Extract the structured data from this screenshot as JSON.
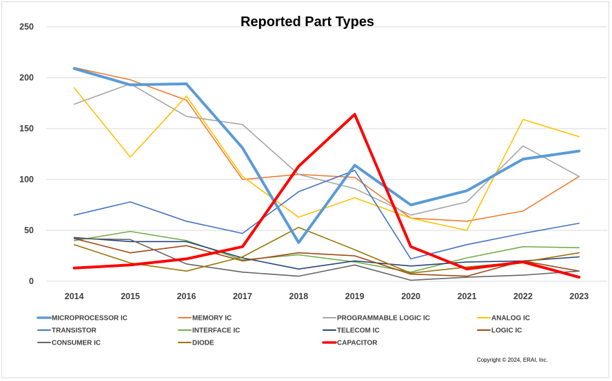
{
  "chart_data": {
    "type": "line",
    "title": "Reported Part Types",
    "xlabel": "",
    "ylabel": "",
    "ylim": [
      0,
      250
    ],
    "yticks": [
      0,
      50,
      100,
      150,
      200,
      250
    ],
    "grid": "horizontal",
    "legend_position": "bottom",
    "categories": [
      "2014",
      "2015",
      "2016",
      "2017",
      "2018",
      "2019",
      "2020",
      "2021",
      "2022",
      "2023"
    ],
    "series": [
      {
        "name": "MICROPROCESSOR IC",
        "color": "#5b9bd5",
        "width": 4,
        "values": [
          209,
          193,
          194,
          131,
          38,
          114,
          75,
          89,
          120,
          128
        ]
      },
      {
        "name": "MEMORY IC",
        "color": "#ed7d31",
        "width": 1.6,
        "values": [
          210,
          198,
          178,
          100,
          105,
          102,
          62,
          59,
          69,
          103
        ]
      },
      {
        "name": "PROGRAMMABLE LOGIC IC",
        "color": "#a5a5a5",
        "width": 1.6,
        "values": [
          174,
          194,
          162,
          154,
          105,
          91,
          65,
          78,
          133,
          103
        ]
      },
      {
        "name": "ANALOG IC",
        "color": "#ffc000",
        "width": 1.6,
        "values": [
          190,
          122,
          182,
          103,
          63,
          82,
          62,
          50,
          159,
          142
        ]
      },
      {
        "name": "TRANSISTOR",
        "color": "#4472c4",
        "width": 1.6,
        "values": [
          65,
          78,
          59,
          47,
          88,
          109,
          22,
          36,
          47,
          57
        ]
      },
      {
        "name": "INTERFACE IC",
        "color": "#70ad47",
        "width": 1.6,
        "values": [
          40,
          49,
          40,
          21,
          26,
          19,
          9,
          23,
          34,
          33
        ]
      },
      {
        "name": "TELECOM IC",
        "color": "#264478",
        "width": 1.6,
        "values": [
          43,
          39,
          39,
          23,
          12,
          20,
          15,
          19,
          20,
          24
        ]
      },
      {
        "name": "LOGIC IC",
        "color": "#9e480e",
        "width": 1.6,
        "values": [
          42,
          28,
          35,
          20,
          28,
          25,
          7,
          5,
          20,
          10
        ]
      },
      {
        "name": "CONSUMER IC",
        "color": "#636363",
        "width": 1.6,
        "values": [
          42,
          41,
          17,
          9,
          5,
          16,
          1,
          4,
          6,
          10
        ]
      },
      {
        "name": "DIODE",
        "color": "#997300",
        "width": 1.6,
        "values": [
          36,
          18,
          10,
          24,
          53,
          31,
          8,
          14,
          19,
          28
        ]
      },
      {
        "name": "CAPACITOR",
        "color": "#ff0000",
        "width": 4,
        "values": [
          13,
          16,
          22,
          34,
          113,
          164,
          34,
          12,
          19,
          4
        ]
      }
    ]
  },
  "copyright": "Copyright © 2024, ERAI, Inc."
}
